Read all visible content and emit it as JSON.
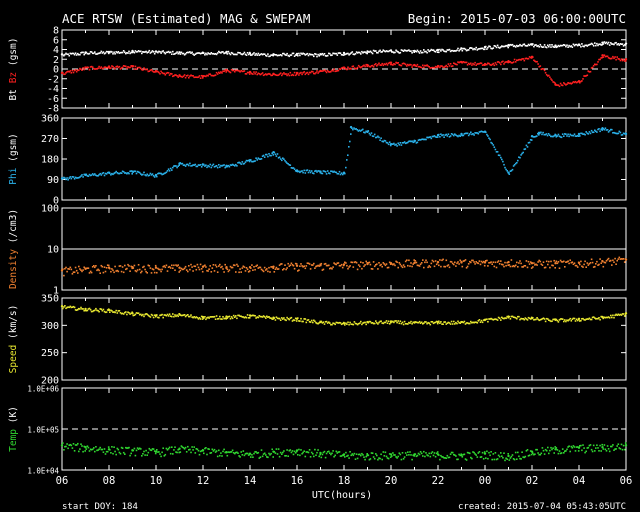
{
  "header": {
    "title": "ACE RTSW (Estimated) MAG & SWEPAM",
    "begin": "Begin: 2015-07-03 06:00:00UTC"
  },
  "footer": {
    "start_doy": "start DOY: 184",
    "created": "created: 2015-07-04 05:43:05UTC"
  },
  "colors": {
    "bt": "#ffffff",
    "bz": "#ff2020",
    "phi": "#2ab0e8",
    "density": "#f08030",
    "speed": "#e8e830",
    "temp": "#30d830",
    "axis": "#ffffff",
    "background": "#000000"
  },
  "chart_data": [
    {
      "type": "scatter",
      "panel": "mag",
      "ylabel_parts": [
        {
          "text": "Bt",
          "color": "#ffffff"
        },
        {
          "text": "Bz",
          "color": "#ff2020"
        },
        {
          "text": "(gsm)",
          "color": "#ffffff"
        }
      ],
      "ylim": [
        -8,
        8
      ],
      "yticks": [
        "8",
        "6",
        "4",
        "2",
        "0",
        "-2",
        "-4",
        "-6",
        "-8"
      ],
      "ytick_values": [
        8,
        6,
        4,
        2,
        0,
        -2,
        -4,
        -6,
        -8
      ],
      "dashed_line": 0,
      "series": [
        {
          "name": "Bt",
          "color": "#ffffff",
          "x": [
            0,
            1,
            2,
            3,
            4,
            5,
            6,
            7,
            8,
            9,
            10,
            11,
            12,
            13,
            14,
            15,
            16,
            17,
            18,
            19,
            20,
            21,
            22,
            23,
            24
          ],
          "y": [
            3.0,
            3.4,
            3.5,
            3.7,
            3.6,
            3.4,
            3.3,
            3.5,
            3.2,
            3.0,
            3.1,
            3.0,
            3.3,
            3.6,
            3.8,
            3.7,
            3.9,
            4.2,
            4.5,
            4.9,
            5.0,
            4.8,
            5.0,
            5.4,
            5.2
          ]
        },
        {
          "name": "Bz",
          "color": "#ff2020",
          "x": [
            0,
            1,
            2,
            3,
            4,
            5,
            6,
            7,
            8,
            9,
            10,
            11,
            12,
            13,
            14,
            15,
            16,
            17,
            18,
            19,
            20,
            21,
            22,
            23,
            24
          ],
          "y": [
            -0.8,
            0.3,
            0.5,
            0.5,
            -0.5,
            -1.3,
            -1.5,
            -0.2,
            -0.6,
            -1.0,
            -0.8,
            -0.4,
            0.3,
            0.8,
            1.3,
            0.8,
            0.6,
            1.4,
            1.0,
            1.6,
            2.5,
            -3.2,
            -2.5,
            2.8,
            2.0
          ]
        }
      ]
    },
    {
      "type": "scatter",
      "panel": "phi",
      "ylabel_parts": [
        {
          "text": "Phi",
          "color": "#2ab0e8"
        },
        {
          "text": "(gsm)",
          "color": "#ffffff"
        }
      ],
      "ylim": [
        0,
        360
      ],
      "yticks": [
        "360",
        "270",
        "180",
        "90",
        "0"
      ],
      "ytick_values": [
        360,
        270,
        180,
        90,
        0
      ],
      "series": [
        {
          "name": "Phi",
          "color": "#2ab0e8",
          "x": [
            0,
            1,
            2,
            3,
            4,
            5,
            6,
            7,
            8,
            9,
            10,
            11,
            12,
            12.3,
            13,
            14,
            15,
            16,
            17,
            18,
            19,
            20,
            20.3,
            21,
            22,
            23,
            24
          ],
          "y": [
            95,
            110,
            120,
            125,
            110,
            160,
            155,
            150,
            175,
            210,
            130,
            125,
            120,
            320,
            300,
            245,
            260,
            285,
            290,
            300,
            120,
            280,
            295,
            285,
            290,
            315,
            290
          ]
        }
      ]
    },
    {
      "type": "scatter",
      "panel": "density",
      "ylabel_parts": [
        {
          "text": "Density",
          "color": "#f08030"
        },
        {
          "text": "(/cm3)",
          "color": "#ffffff"
        }
      ],
      "yscale": "log",
      "ylim": [
        1,
        100
      ],
      "yticks": [
        "100",
        "10",
        "1"
      ],
      "ytick_values": [
        100,
        10,
        1
      ],
      "solid_line": 10,
      "series": [
        {
          "name": "Density",
          "color": "#f08030",
          "x": [
            0,
            1,
            2,
            3,
            4,
            5,
            6,
            7,
            8,
            9,
            10,
            11,
            12,
            13,
            14,
            15,
            16,
            17,
            18,
            19,
            20,
            21,
            22,
            23,
            24
          ],
          "y": [
            3.0,
            3.3,
            3.5,
            3.6,
            3.5,
            3.5,
            3.7,
            3.6,
            3.6,
            3.7,
            3.9,
            4.0,
            4.2,
            4.3,
            4.5,
            4.6,
            4.8,
            4.7,
            4.7,
            4.8,
            4.5,
            4.5,
            4.6,
            5.0,
            5.5
          ]
        }
      ]
    },
    {
      "type": "scatter",
      "panel": "speed",
      "ylabel_parts": [
        {
          "text": "Speed",
          "color": "#e8e830"
        },
        {
          "text": "(km/s)",
          "color": "#ffffff"
        }
      ],
      "ylim": [
        200,
        350
      ],
      "yticks": [
        "350",
        "300",
        "250",
        "200"
      ],
      "ytick_values": [
        350,
        300,
        250,
        200
      ],
      "series": [
        {
          "name": "Speed",
          "color": "#e8e830",
          "x": [
            0,
            1,
            2,
            3,
            4,
            5,
            6,
            7,
            8,
            9,
            10,
            11,
            12,
            13,
            14,
            15,
            16,
            17,
            18,
            19,
            20,
            21,
            22,
            23,
            24
          ],
          "y": [
            335,
            330,
            328,
            322,
            318,
            320,
            315,
            316,
            318,
            314,
            312,
            306,
            304,
            306,
            307,
            305,
            306,
            306,
            310,
            316,
            313,
            310,
            312,
            315,
            322
          ]
        }
      ]
    },
    {
      "type": "scatter",
      "panel": "temp",
      "ylabel_parts": [
        {
          "text": "Temp",
          "color": "#30d830"
        },
        {
          "text": "(K)",
          "color": "#ffffff"
        }
      ],
      "yscale": "log",
      "ylim": [
        10000,
        1000000
      ],
      "yticks": [
        "1.0E+06",
        "1.0E+05",
        "1.0E+04"
      ],
      "ytick_values": [
        1000000,
        100000,
        10000
      ],
      "dashed_line": 100000,
      "series": [
        {
          "name": "Temp",
          "color": "#30d830",
          "x": [
            0,
            1,
            2,
            3,
            4,
            5,
            6,
            7,
            8,
            9,
            10,
            11,
            12,
            13,
            14,
            15,
            16,
            17,
            18,
            19,
            20,
            21,
            22,
            23,
            24
          ],
          "y": [
            40000,
            36000,
            32000,
            30000,
            28000,
            33000,
            30000,
            27000,
            25000,
            28000,
            30000,
            26000,
            24000,
            23000,
            24000,
            24000,
            24000,
            23000,
            25000,
            22000,
            28000,
            32000,
            35000,
            36000,
            40000
          ]
        }
      ]
    }
  ],
  "xaxis": {
    "label": "UTC(hours)",
    "ticks": [
      "06",
      "08",
      "10",
      "12",
      "14",
      "16",
      "18",
      "20",
      "22",
      "00",
      "02",
      "04",
      "06"
    ],
    "range_hours": [
      0,
      24
    ]
  }
}
